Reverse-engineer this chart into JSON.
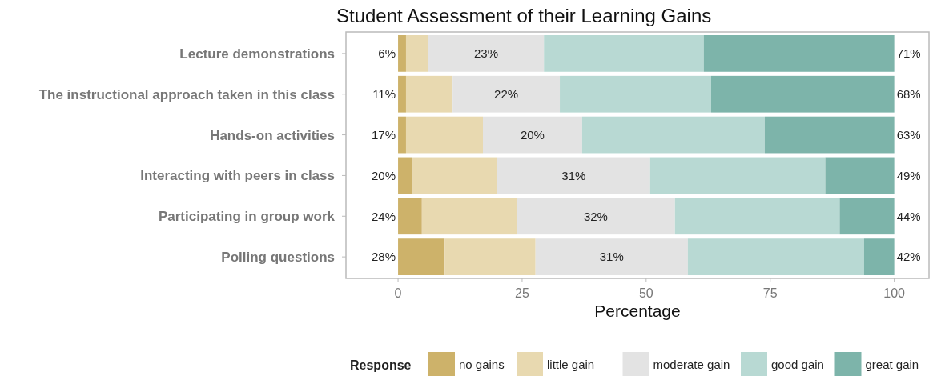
{
  "chart_data": {
    "type": "bar",
    "orientation": "horizontal",
    "stacked": true,
    "title": "Student Assessment of their Learning Gains",
    "xlabel": "Percentage",
    "legend_title": "Response",
    "legend": "bottom",
    "grid": false,
    "categories": [
      "Lecture demonstrations",
      "The instructional approach taken in this class",
      "Hands-on activities",
      "Interacting with peers in class",
      "Participating in group work",
      "Polling questions"
    ],
    "series": [
      {
        "name": "no gains",
        "color": "#cdb26a",
        "values": [
          1.6,
          1.6,
          1.6,
          2.9,
          4.8,
          9.4
        ]
      },
      {
        "name": "little gain",
        "color": "#e8d9b0",
        "values": [
          4.5,
          9.4,
          15.5,
          17.1,
          19.1,
          18.3
        ]
      },
      {
        "name": "moderate gain",
        "color": "#e3e3e3",
        "values": [
          23.3,
          21.6,
          20.0,
          30.8,
          31.9,
          30.7
        ],
        "value_labels": [
          "23%",
          "22%",
          "20%",
          "31%",
          "32%",
          "31%"
        ]
      },
      {
        "name": "good gain",
        "color": "#b8d9d3",
        "values": [
          32.2,
          30.5,
          36.8,
          35.3,
          33.2,
          35.5
        ]
      },
      {
        "name": "great gain",
        "color": "#7db4aa",
        "values": [
          38.4,
          36.9,
          26.1,
          13.9,
          11.0,
          6.1
        ]
      }
    ],
    "xlim": [
      -10.5,
      107
    ],
    "xticks": [
      0,
      25,
      50,
      75,
      100
    ],
    "annotations": [
      "6%",
      "11%",
      "17%",
      "20%",
      "24%",
      "28%",
      "71%",
      "68%",
      "63%",
      "49%",
      "44%",
      "42%"
    ]
  }
}
